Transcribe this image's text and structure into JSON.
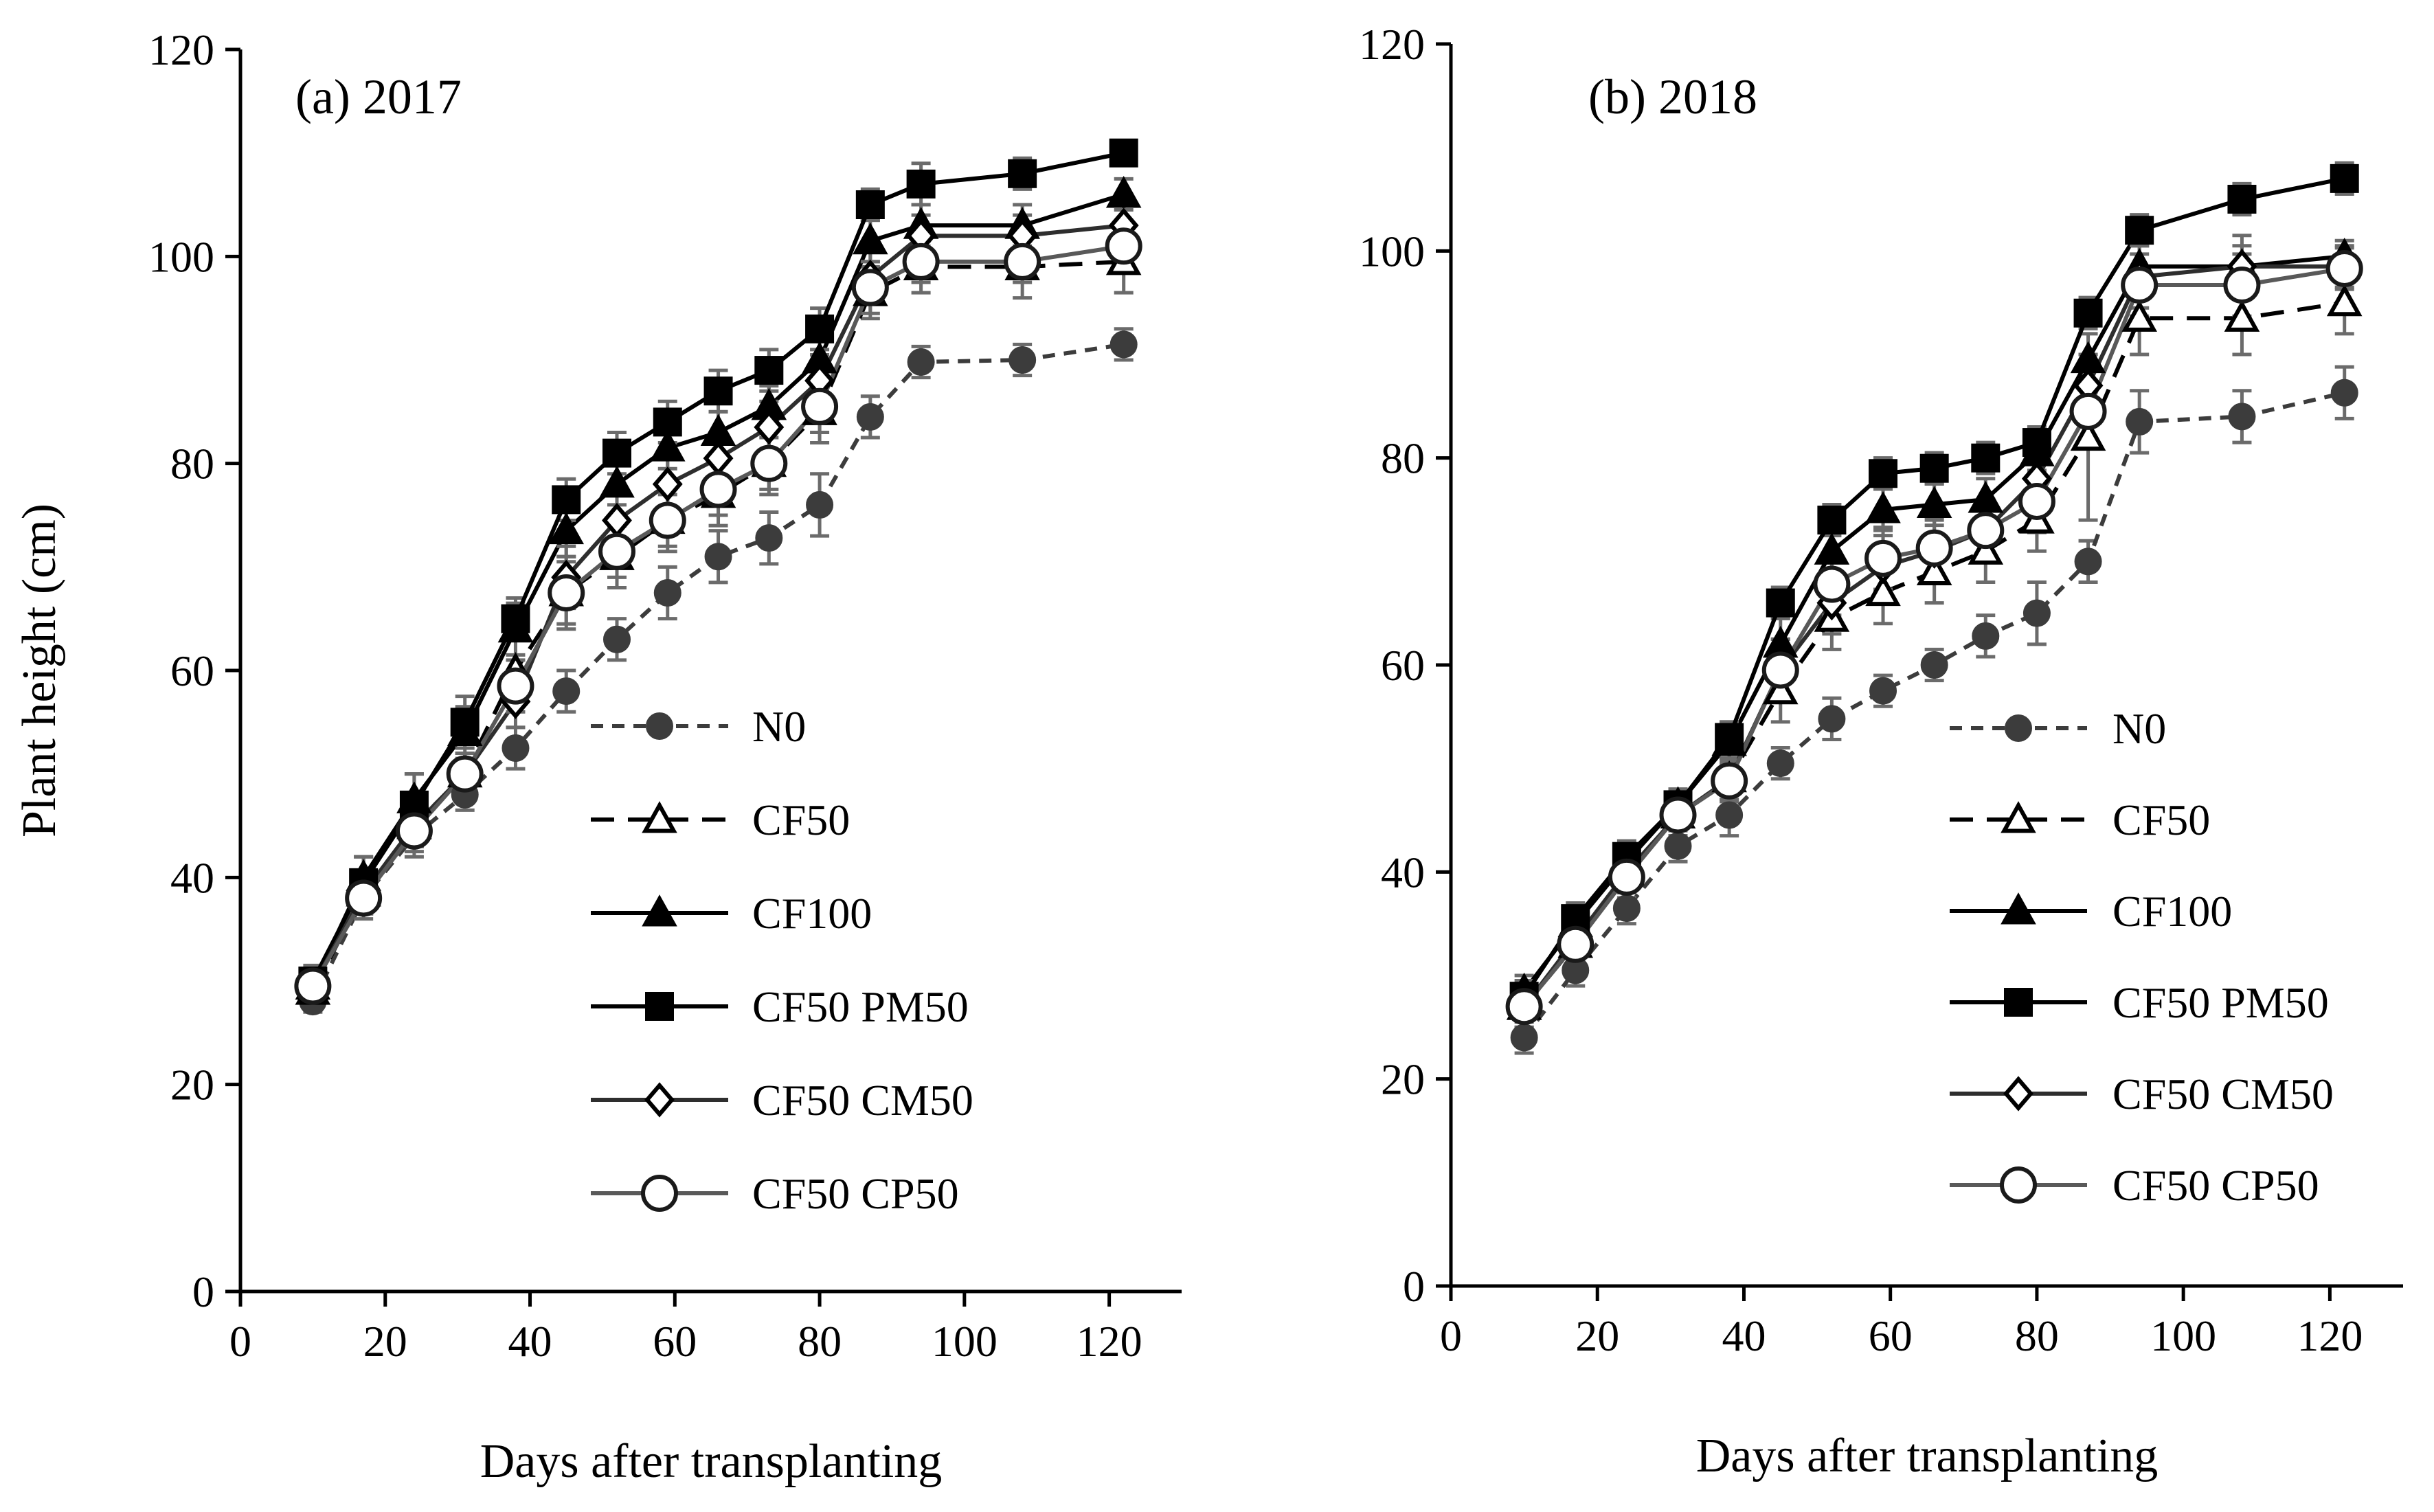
{
  "chart_data": [
    {
      "type": "line",
      "title": "(a) 2017",
      "xlabel": "Days after transplanting",
      "ylabel": "Plant height (cm)",
      "xlim": [
        0,
        130
      ],
      "ylim": [
        0,
        120
      ],
      "xticks": [
        0,
        20,
        40,
        60,
        80,
        100,
        120
      ],
      "yticks": [
        0,
        20,
        40,
        60,
        80,
        100,
        120
      ],
      "x": [
        10,
        17,
        24,
        31,
        38,
        45,
        52,
        59,
        66,
        73,
        80,
        87,
        94,
        108,
        122
      ],
      "legend_position": "center-right",
      "series": [
        {
          "name": "N0",
          "values": [
            28,
            38,
            44,
            48,
            52.5,
            58,
            63,
            67.5,
            71,
            72.8,
            76,
            84.5,
            89.8,
            90,
            91.5
          ],
          "errors": [
            1,
            1.5,
            2,
            1.5,
            2,
            2,
            2,
            2.5,
            2.5,
            2.5,
            3,
            2,
            1.5,
            1.5,
            1.5
          ]
        },
        {
          "name": "CF50",
          "values": [
            29,
            38.5,
            45,
            50,
            60,
            67.5,
            71,
            74.5,
            77,
            80,
            85,
            96.5,
            99,
            99,
            99.5
          ],
          "errors": [
            1.5,
            2,
            2,
            2,
            3,
            3.5,
            3,
            3,
            3,
            3,
            3,
            2.5,
            2.5,
            3,
            3
          ]
        },
        {
          "name": "CF100",
          "values": [
            29.5,
            40,
            47.5,
            54,
            64,
            73.5,
            78,
            81.5,
            83,
            85.5,
            90,
            101.5,
            103,
            103,
            106
          ],
          "errors": [
            1.5,
            2,
            2.5,
            2.5,
            2.5,
            2.5,
            2,
            2,
            2,
            2,
            2,
            2,
            2,
            2,
            1.5
          ]
        },
        {
          "name": "CF50 PM50",
          "values": [
            30,
            39.5,
            47,
            55,
            65,
            76.5,
            81,
            84,
            87,
            89,
            93,
            105,
            107,
            108,
            110
          ],
          "errors": [
            1.5,
            2.5,
            3,
            2.5,
            2,
            2,
            2,
            2,
            2,
            2,
            2,
            1.5,
            2,
            1.5,
            1
          ]
        },
        {
          "name": "CF50 CM50",
          "values": [
            29.5,
            38.5,
            45,
            50,
            57,
            69,
            74.5,
            78,
            80.5,
            83.5,
            88,
            98,
            102,
            102,
            103
          ],
          "errors": [
            1.5,
            2,
            2,
            2,
            2.5,
            3,
            2.5,
            2.5,
            2.5,
            2.5,
            2.5,
            2.5,
            2,
            2,
            2
          ]
        },
        {
          "name": "CF50 CP50",
          "values": [
            29.5,
            38,
            44.5,
            50,
            58.5,
            67.5,
            71.5,
            74.5,
            77.5,
            80,
            85.5,
            97,
            99.5,
            99.5,
            101
          ],
          "errors": [
            1.5,
            2,
            2,
            2,
            2.5,
            3,
            2.5,
            2.5,
            2.5,
            2.5,
            2.5,
            2.5,
            2,
            2,
            2
          ]
        }
      ]
    },
    {
      "type": "line",
      "title": "(b) 2018",
      "xlabel": "Days after transplanting",
      "ylabel": "",
      "xlim": [
        0,
        130
      ],
      "ylim": [
        0,
        120
      ],
      "xticks": [
        0,
        20,
        40,
        60,
        80,
        100,
        120
      ],
      "yticks": [
        0,
        20,
        40,
        60,
        80,
        100,
        120
      ],
      "x": [
        10,
        17,
        24,
        31,
        38,
        45,
        52,
        59,
        66,
        73,
        80,
        87,
        94,
        108,
        122
      ],
      "legend_position": "center-right",
      "series": [
        {
          "name": "N0",
          "values": [
            24,
            30.5,
            36.5,
            42.5,
            45.5,
            50.5,
            54.8,
            57.5,
            60,
            62.8,
            65,
            70,
            83.5,
            84,
            86.3
          ],
          "errors": [
            1.5,
            1.5,
            1.5,
            1.5,
            2,
            1.5,
            2,
            1.5,
            1.5,
            2,
            3,
            2,
            3,
            2.5,
            2.5
          ]
        },
        {
          "name": "CF50",
          "values": [
            27,
            33,
            40,
            45.5,
            49,
            57.5,
            64.5,
            67,
            69,
            71,
            74,
            82,
            93.5,
            93.5,
            95
          ],
          "errors": [
            2,
            2,
            2,
            2,
            2,
            3,
            3,
            3,
            3,
            3,
            3,
            8,
            3.5,
            3.5,
            3
          ]
        },
        {
          "name": "CF100",
          "values": [
            28.5,
            35,
            41,
            46.5,
            52.5,
            62,
            71,
            75,
            75.5,
            76,
            80.5,
            89.5,
            98.5,
            98.5,
            99.5
          ],
          "errors": [
            1.5,
            1.5,
            1.5,
            1.5,
            2,
            2.5,
            2,
            2,
            2,
            2,
            2,
            2.5,
            2,
            2,
            1.5
          ]
        },
        {
          "name": "CF50 PM50",
          "values": [
            28,
            35.5,
            41.5,
            46.5,
            53,
            66,
            74,
            78.5,
            79,
            80,
            81.5,
            94,
            102,
            105,
            107
          ],
          "errors": [
            1.5,
            1.5,
            1.5,
            1.5,
            1.5,
            1.5,
            1.5,
            1.5,
            1.5,
            1.5,
            1.5,
            1.5,
            1.5,
            1.5,
            1.5
          ]
        },
        {
          "name": "CF50 CM50",
          "values": [
            27,
            33.5,
            40,
            45.5,
            49,
            59.5,
            66,
            69.5,
            71,
            73,
            78,
            87,
            97.5,
            98.5,
            98.5
          ],
          "errors": [
            2,
            2,
            2,
            2,
            2,
            3,
            3,
            3,
            3,
            3,
            3,
            3,
            3,
            3,
            2
          ]
        },
        {
          "name": "CF50 CP50",
          "values": [
            27,
            33,
            39.5,
            45.5,
            48.8,
            59.5,
            67.8,
            70.3,
            71.3,
            73,
            75.8,
            84.5,
            96.7,
            96.7,
            98.3
          ],
          "errors": [
            2,
            2,
            2,
            2,
            2,
            3,
            3,
            3,
            3,
            3,
            3,
            3,
            3,
            3,
            2
          ]
        }
      ]
    }
  ],
  "series_styles": {
    "N0": {
      "color": "#3c3c3c",
      "dash": "dashed-fine",
      "marker": "circle",
      "fill": "#3c3c3c"
    },
    "CF50": {
      "color": "#000000",
      "dash": "dashed-long",
      "marker": "triangle",
      "fill": "#ffffff"
    },
    "CF100": {
      "color": "#000000",
      "dash": "solid",
      "marker": "triangle",
      "fill": "#000000"
    },
    "CF50 PM50": {
      "color": "#000000",
      "dash": "solid",
      "marker": "square",
      "fill": "#000000"
    },
    "CF50 CM50": {
      "color": "#2e2e2e",
      "dash": "solid",
      "marker": "diamond",
      "fill": "#ffffff"
    },
    "CF50 CP50": {
      "color": "#595959",
      "dash": "solid",
      "marker": "circle",
      "fill": "#ffffff"
    }
  }
}
